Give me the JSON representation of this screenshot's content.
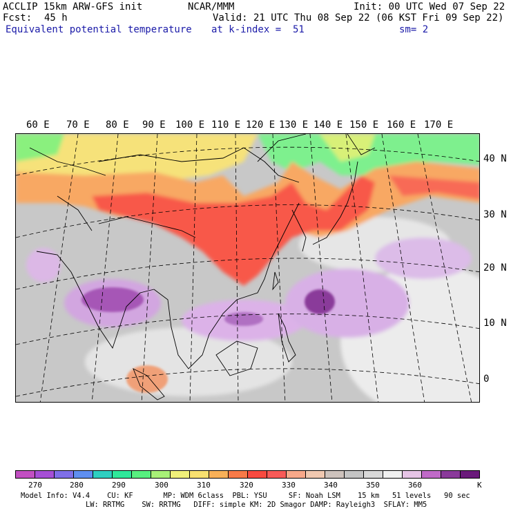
{
  "header": {
    "model": "ACCLIP 15km ARW-GFS init",
    "org": "NCAR/MMM",
    "init": "Init: 00 UTC Wed 07 Sep 22",
    "fcst_label": "Fcst:",
    "fcst_value": "45 h",
    "valid": "Valid: 21 UTC Thu 08 Sep 22 (06 KST Fri 09 Sep 22)",
    "field": "Equivalent potential temperature",
    "level": "at k-index =  51",
    "smoothing": "sm= 2"
  },
  "map": {
    "lon_labels": [
      "60 E",
      "70 E",
      "80 E",
      "90 E",
      "100 E",
      "110 E",
      "120 E",
      "130 E",
      "140 E",
      "150 E",
      "160 E",
      "170 E"
    ],
    "lat_labels": [
      "40 N",
      "30 N",
      "20 N",
      "10 N",
      "0"
    ]
  },
  "colorbar": {
    "colors": [
      "#c24fc2",
      "#a64fd6",
      "#7f6fe8",
      "#5f8ff0",
      "#2fcfc0",
      "#2fe89a",
      "#58f080",
      "#a8f078",
      "#f0f07a",
      "#f8e070",
      "#f8b058",
      "#f87a48",
      "#f84a40",
      "#f85a58",
      "#f8a88a",
      "#f0c8b0",
      "#cdc2bc",
      "#c4c4c4",
      "#d8d8d8",
      "#f0f0f0",
      "#e6c4e6",
      "#c06ac8",
      "#8a3a9a",
      "#6a1a7a"
    ],
    "tick_labels": [
      "270",
      "280",
      "290",
      "300",
      "310",
      "320",
      "330",
      "340",
      "350",
      "360"
    ],
    "unit": "K"
  },
  "footer": {
    "line1": "Model Info: V4.4    CU: KF       MP: WDM 6class  PBL: YSU     SF: Noah LSM    15 km   51 levels   90 sec",
    "line2": "LW: RRTMG    SW: RRTMG   DIFF: simple KM: 2D Smagor DAMP: Rayleigh3  SFLAY: MM5"
  }
}
